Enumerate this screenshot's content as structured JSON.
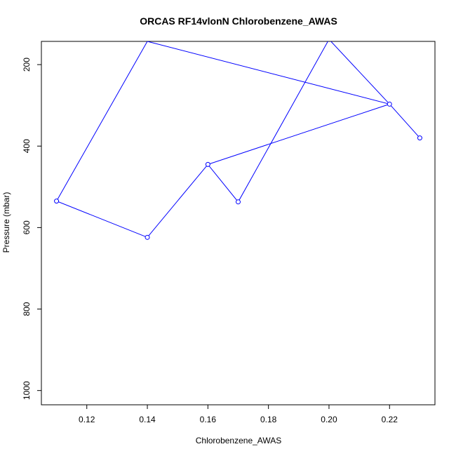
{
  "chart_data": {
    "type": "line",
    "title": "ORCAS RF14vlonN Chlorobenzene_AWAS",
    "xlabel": "Chlorobenzene_AWAS",
    "ylabel": "Pressure (mbar)",
    "xlim": [
      0.105,
      0.235
    ],
    "ylim": [
      1035,
      143
    ],
    "y_reversed": true,
    "x_ticks": [
      0.12,
      0.14,
      0.16,
      0.18,
      0.2,
      0.22
    ],
    "x_tick_labels": [
      "0.12",
      "0.14",
      "0.16",
      "0.18",
      "0.20",
      "0.22"
    ],
    "y_ticks": [
      200,
      400,
      600,
      800,
      1000
    ],
    "y_tick_labels": [
      "200",
      "400",
      "600",
      "800",
      "1000"
    ],
    "grid": false,
    "series": [
      {
        "color": "#0000ff",
        "points": [
          {
            "x": 0.23,
            "y": 380,
            "marker": true
          },
          {
            "x": 0.22,
            "y": 297,
            "marker": true
          },
          {
            "x": 0.2,
            "y": 138,
            "marker": false
          },
          {
            "x": 0.17,
            "y": 537,
            "marker": true
          },
          {
            "x": 0.16,
            "y": 445,
            "marker": false
          },
          {
            "x": 0.22,
            "y": 297,
            "marker": false
          },
          {
            "x": 0.14,
            "y": 143,
            "marker": false
          },
          {
            "x": 0.11,
            "y": 535,
            "marker": true
          },
          {
            "x": 0.14,
            "y": 624,
            "marker": true
          },
          {
            "x": 0.16,
            "y": 445,
            "marker": true
          }
        ]
      }
    ]
  }
}
